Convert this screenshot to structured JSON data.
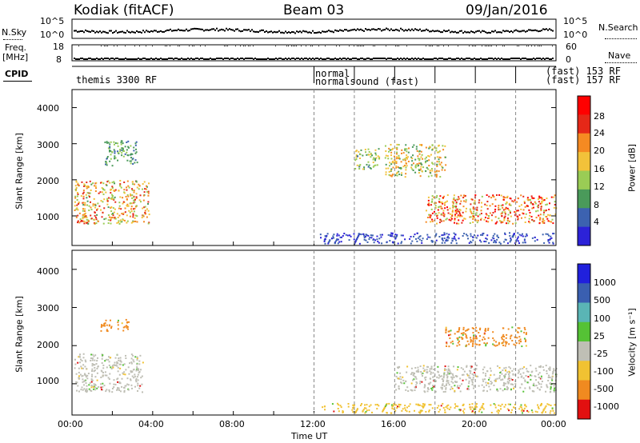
{
  "header": {
    "station": "Kodiak (fitACF)",
    "beam": "Beam 03",
    "date": "09/Jan/2016"
  },
  "sky_panel": {
    "left_label": "N.Sky",
    "left_ticks": [
      "10^5",
      "10^0"
    ],
    "right_ticks": [
      "10^5",
      "10^0"
    ],
    "right_label": "N.Search"
  },
  "freq_panel": {
    "left_label_1": "Freq.",
    "left_label_2": "[MHz]",
    "left_ticks": [
      "18",
      "8"
    ],
    "right_ticks": [
      "60",
      "0"
    ],
    "right_label": "Nave"
  },
  "cpid_panel": {
    "label": "CPID",
    "segments": [
      "themis 3300 RF",
      "normal",
      "normalsound (fast)",
      "(fast) 153 RF",
      "(fast) 157 RF"
    ]
  },
  "colors": {
    "power": [
      "#2c22d8",
      "#3c62b0",
      "#4a9a5a",
      "#9acc55",
      "#f2c23a",
      "#f58a22",
      "#e52818",
      "#ff0000"
    ],
    "velocity": [
      "#2020dc",
      "#3a5fb0",
      "#5ab5b5",
      "#55c235",
      "#bfbfb5",
      "#f1c232",
      "#f08a20",
      "#e21010"
    ],
    "background": "#ffffff",
    "grid": "#888888"
  },
  "chart_data": [
    {
      "type": "heatmap",
      "name": "power",
      "title": "",
      "xlabel": "",
      "ylabel": "Slant Range [km]",
      "xlim": [
        "00:00",
        "24:00"
      ],
      "ylim": [
        180,
        4500
      ],
      "yticks": [
        1000,
        2000,
        3000,
        4000
      ],
      "vertical_markers": [
        "12:00",
        "14:00",
        "16:00",
        "18:00",
        "20:00",
        "22:00"
      ],
      "colorbar": {
        "label": "Power [dB]",
        "ticks": [
          "4",
          "8",
          "12",
          "16",
          "20",
          "24",
          "28"
        ]
      },
      "echo_regions": [
        {
          "t_start": 0.1,
          "t_end": 3.8,
          "r_start": 800,
          "r_end": 2000,
          "peak_db": 26
        },
        {
          "t_start": 1.6,
          "t_end": 3.2,
          "r_start": 2400,
          "r_end": 3100,
          "peak_db": 14
        },
        {
          "t_start": 12.2,
          "t_end": 24.0,
          "r_start": 250,
          "r_end": 550,
          "peak_db": 6
        },
        {
          "t_start": 14.0,
          "t_end": 15.2,
          "r_start": 2300,
          "r_end": 2900,
          "peak_db": 18
        },
        {
          "t_start": 15.5,
          "t_end": 18.5,
          "r_start": 2100,
          "r_end": 3000,
          "peak_db": 22
        },
        {
          "t_start": 17.5,
          "t_end": 24.0,
          "r_start": 800,
          "r_end": 1600,
          "peak_db": 30
        }
      ]
    },
    {
      "type": "heatmap",
      "name": "velocity",
      "title": "",
      "xlabel": "Time UT",
      "ylabel": "Slant Range [km]",
      "xlim": [
        "00:00",
        "24:00"
      ],
      "ylim": [
        180,
        4500
      ],
      "xticks": [
        "00:00",
        "04:00",
        "08:00",
        "12:00",
        "16:00",
        "20:00",
        "00:00"
      ],
      "yticks": [
        1000,
        2000,
        3000,
        4000
      ],
      "vertical_markers": [
        "12:00",
        "14:00",
        "16:00",
        "18:00",
        "20:00",
        "22:00"
      ],
      "colorbar": {
        "label": "Velocity [m s⁻¹]",
        "ticks": [
          "1000",
          "500",
          "100",
          "25",
          "-25",
          "-100",
          "-500",
          "-1000"
        ]
      },
      "echo_regions": [
        {
          "t_start": 0.1,
          "t_end": 3.5,
          "r_start": 800,
          "r_end": 1800,
          "vel": 0
        },
        {
          "t_start": 1.3,
          "t_end": 2.8,
          "r_start": 2400,
          "r_end": 2700,
          "vel": -200
        },
        {
          "t_start": 12.2,
          "t_end": 24.0,
          "r_start": 250,
          "r_end": 500,
          "vel": -50
        },
        {
          "t_start": 16.0,
          "t_end": 24.0,
          "r_start": 800,
          "r_end": 1500,
          "vel": 0
        },
        {
          "t_start": 18.5,
          "t_end": 22.5,
          "r_start": 2000,
          "r_end": 2500,
          "vel": -400
        }
      ]
    }
  ]
}
